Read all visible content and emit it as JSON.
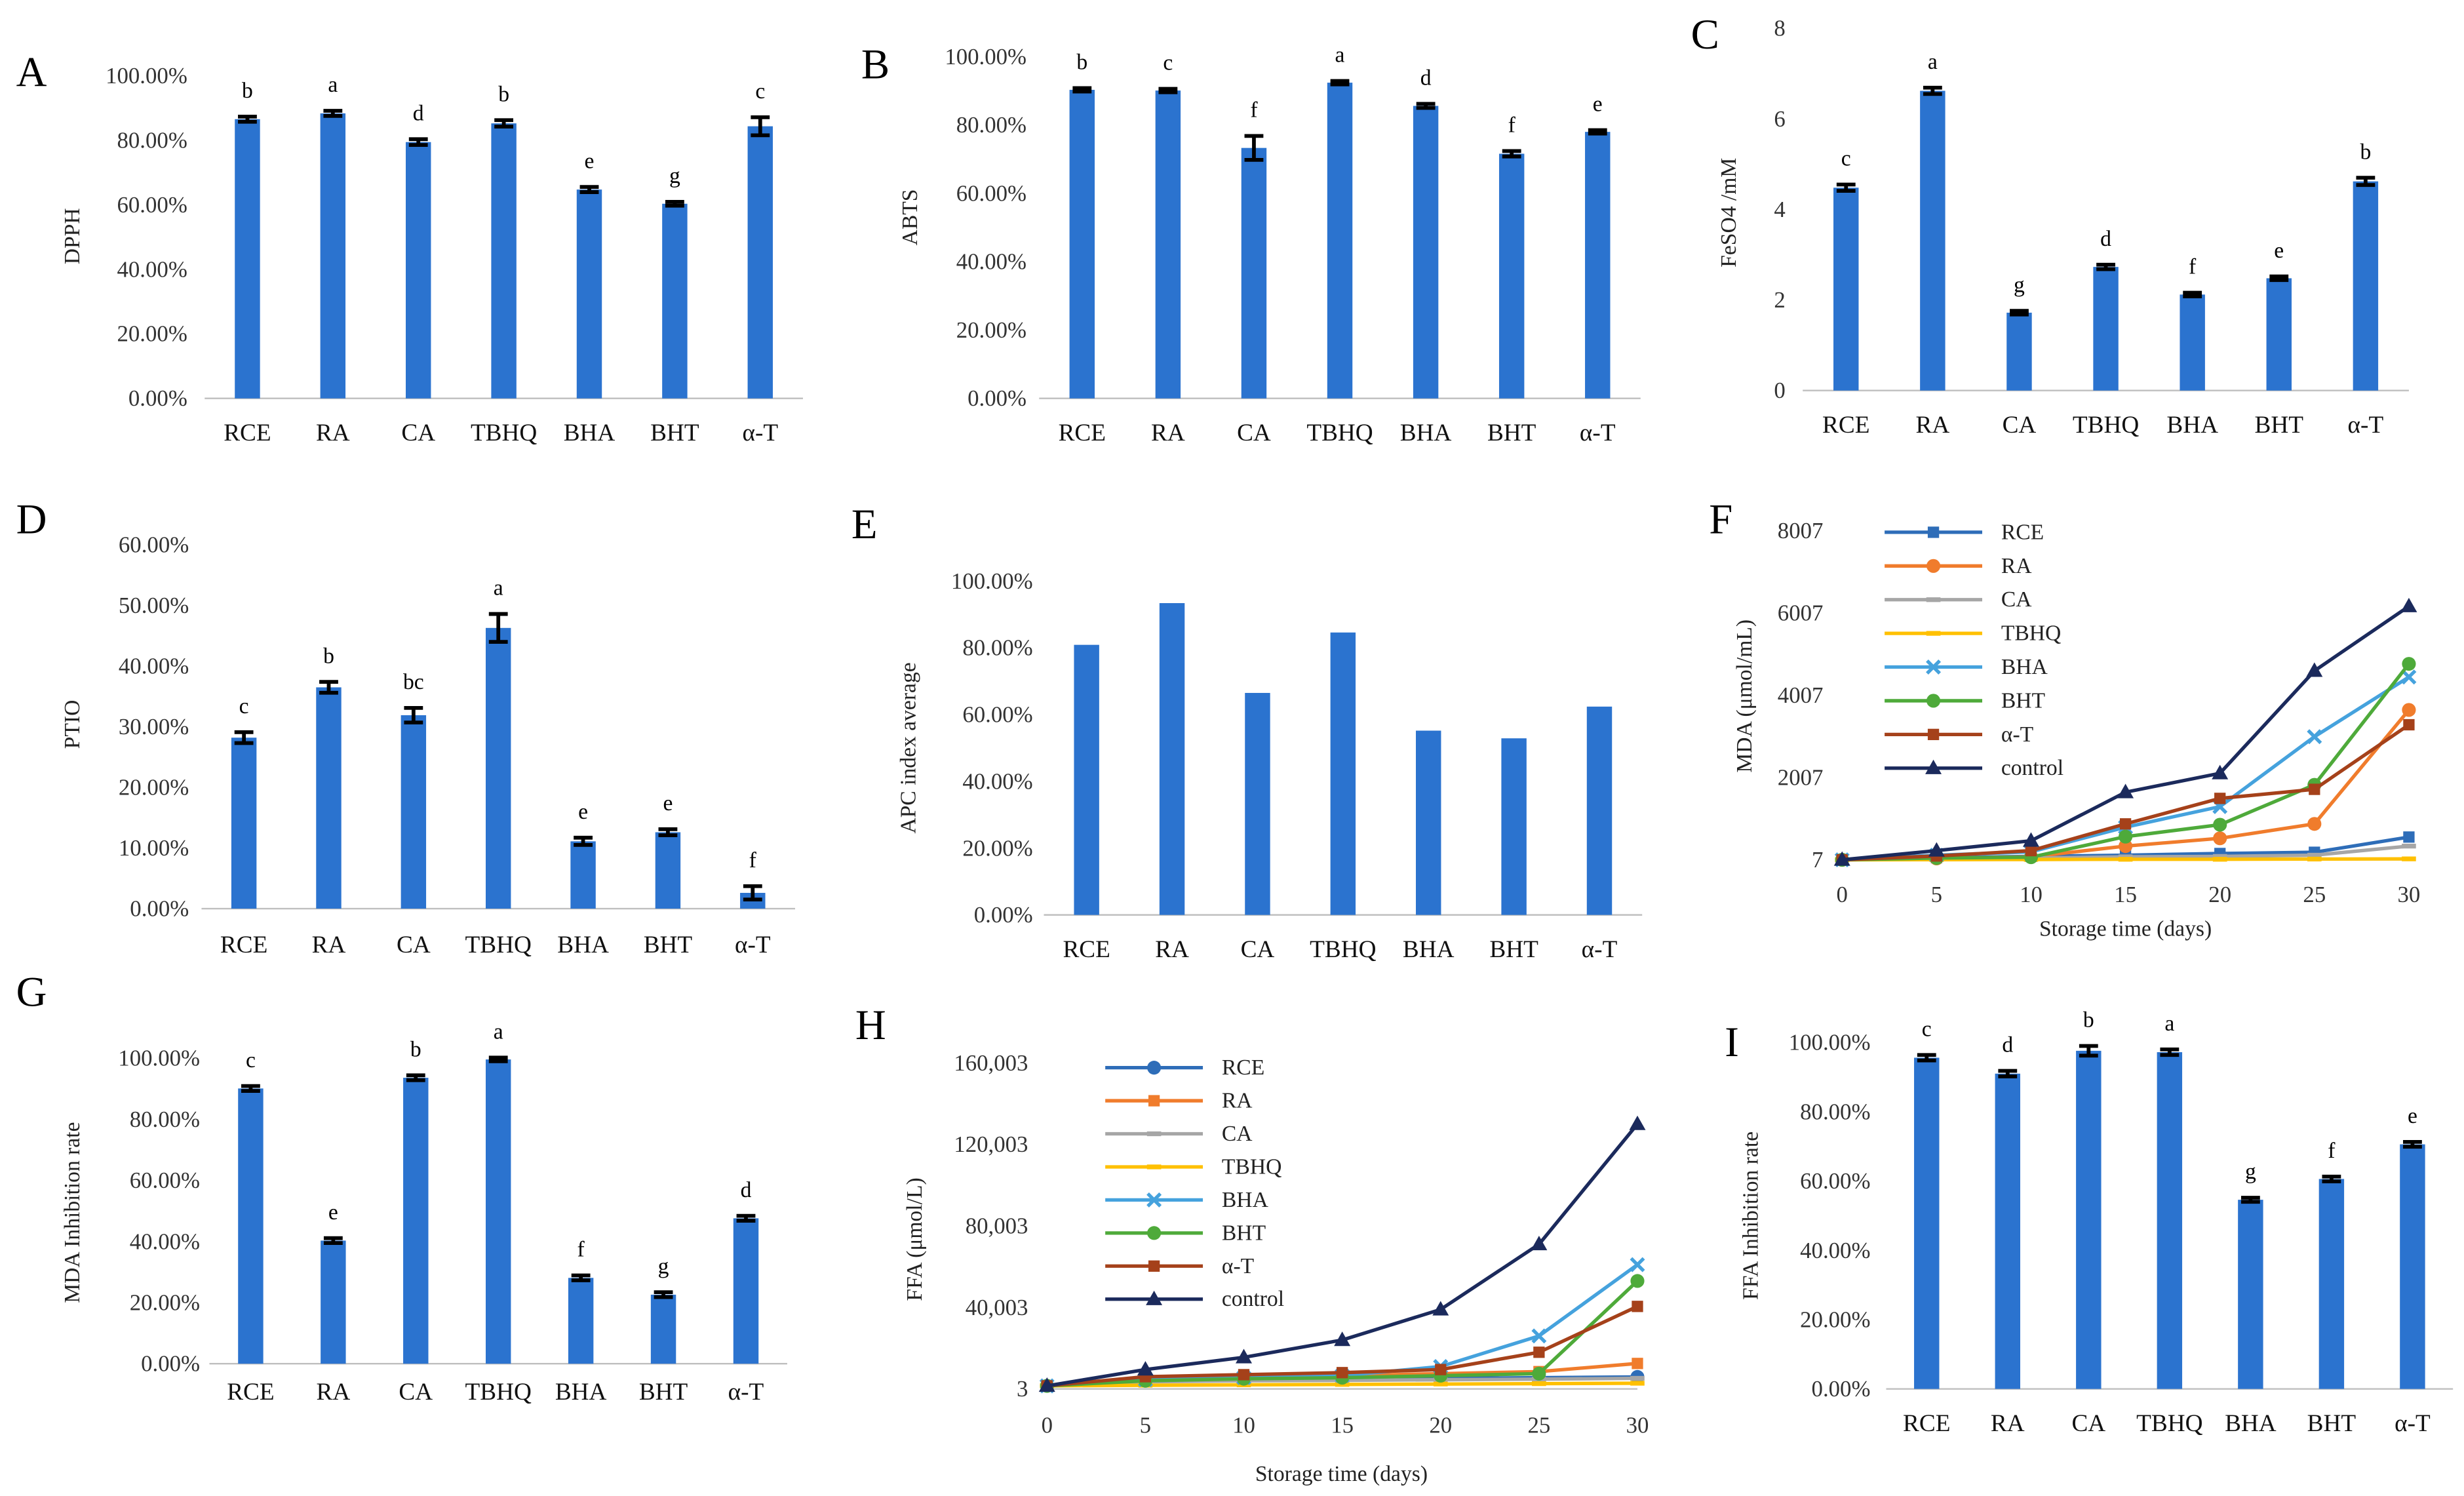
{
  "chart_data": [
    {
      "panel_label": "A",
      "type": "bar",
      "title": "",
      "xlabel": "",
      "ylabel": "DPPH",
      "categories": [
        "RCE",
        "RA",
        "CA",
        "TBHQ",
        "BHA",
        "BHT",
        "α-T"
      ],
      "values": [
        86.5,
        88.3,
        79.4,
        85.2,
        64.7,
        60.3,
        84.3
      ],
      "errors": [
        0.8,
        0.8,
        0.9,
        1.0,
        0.8,
        0.6,
        2.8
      ],
      "significance": [
        "b",
        "a",
        "d",
        "b",
        "e",
        "g",
        "c"
      ],
      "ylim": [
        0,
        100
      ],
      "yticks": [
        0,
        20,
        40,
        60,
        80,
        100
      ],
      "ytick_labels": [
        "0.00%",
        "20.00%",
        "40.00%",
        "60.00%",
        "80.00%",
        "100.00%"
      ],
      "grid": false,
      "color": "#2B73CF"
    },
    {
      "panel_label": "B",
      "type": "bar",
      "title": "",
      "xlabel": "",
      "ylabel": "ABTS",
      "categories": [
        "RCE",
        "RA",
        "CA",
        "TBHQ",
        "BHA",
        "BHT",
        "α-T"
      ],
      "values": [
        90.3,
        90.1,
        73.3,
        92.4,
        85.6,
        71.6,
        78.0
      ],
      "errors": [
        0.5,
        0.5,
        3.5,
        0.5,
        0.6,
        0.8,
        0.5
      ],
      "significance": [
        "b",
        "c",
        "f",
        "a",
        "d",
        "f",
        "e"
      ],
      "ylim": [
        0,
        100
      ],
      "yticks": [
        0,
        20,
        40,
        60,
        80,
        100
      ],
      "ytick_labels": [
        "0.00%",
        "20.00%",
        "40.00%",
        "60.00%",
        "80.00%",
        "100.00%"
      ],
      "grid": false,
      "color": "#2B73CF"
    },
    {
      "panel_label": "C",
      "type": "bar",
      "title": "",
      "xlabel": "",
      "ylabel": "FeSO4 /mM",
      "categories": [
        "RCE",
        "RA",
        "CA",
        "TBHQ",
        "BHA",
        "BHT",
        "α-T"
      ],
      "values": [
        4.48,
        6.62,
        1.72,
        2.73,
        2.12,
        2.48,
        4.62
      ],
      "errors": [
        0.07,
        0.07,
        0.04,
        0.05,
        0.04,
        0.04,
        0.08
      ],
      "significance": [
        "c",
        "a",
        "g",
        "d",
        "f",
        "e",
        "b"
      ],
      "ylim": [
        0,
        8
      ],
      "yticks": [
        0,
        2,
        4,
        6,
        8
      ],
      "ytick_labels": [
        "0",
        "2",
        "4",
        "6",
        "8"
      ],
      "grid": false,
      "color": "#2B73CF"
    },
    {
      "panel_label": "D",
      "type": "bar",
      "title": "",
      "xlabel": "",
      "ylabel": "PTIO",
      "categories": [
        "RCE",
        "RA",
        "CA",
        "TBHQ",
        "BHA",
        "BHT",
        "α-T"
      ],
      "values": [
        28.2,
        36.5,
        31.9,
        46.3,
        11.1,
        12.6,
        2.6
      ],
      "errors": [
        0.9,
        0.9,
        1.2,
        2.3,
        0.6,
        0.5,
        1.1
      ],
      "significance": [
        "c",
        "b",
        "bc",
        "a",
        "e",
        "e",
        "f"
      ],
      "ylim": [
        0,
        60
      ],
      "yticks": [
        0,
        10,
        20,
        30,
        40,
        50,
        60
      ],
      "ytick_labels": [
        "0.00%",
        "10.00%",
        "20.00%",
        "30.00%",
        "40.00%",
        "50.00%",
        "60.00%"
      ],
      "grid": false,
      "color": "#2B73CF"
    },
    {
      "panel_label": "E",
      "type": "bar",
      "title": "",
      "xlabel": "",
      "ylabel": "APC index average",
      "categories": [
        "RCE",
        "RA",
        "CA",
        "TBHQ",
        "BHA",
        "BHT",
        "α-T"
      ],
      "values": [
        80.9,
        93.4,
        66.5,
        84.6,
        55.2,
        52.9,
        62.4
      ],
      "ylim": [
        0,
        100
      ],
      "yticks": [
        0,
        20,
        40,
        60,
        80,
        100
      ],
      "ytick_labels": [
        "0.00%",
        "20.00%",
        "40.00%",
        "60.00%",
        "80.00%",
        "100.00%"
      ],
      "grid": false,
      "color": "#2B73CF"
    },
    {
      "panel_label": "F",
      "type": "line",
      "title": "",
      "xlabel": "Storage time (days)",
      "ylabel": "MDA (μmol/mL)",
      "x": [
        0,
        5,
        10,
        15,
        20,
        25,
        30
      ],
      "xlim": [
        0,
        30
      ],
      "xtick_labels": [
        "0",
        "5",
        "10",
        "15",
        "20",
        "25",
        "30"
      ],
      "ylim": [
        7,
        8007
      ],
      "yticks": [
        7,
        2007,
        4007,
        6007,
        8007
      ],
      "ytick_labels": [
        "7",
        "2007",
        "4007",
        "6007",
        "8007"
      ],
      "grid": false,
      "legend_position": "top-left",
      "series": [
        {
          "name": "RCE",
          "color": "#2E6DB8",
          "marker": "square",
          "values": [
            7,
            60,
            90,
            120,
            160,
            190,
            560
          ]
        },
        {
          "name": "RA",
          "color": "#F07C2C",
          "marker": "circle",
          "values": [
            7,
            40,
            80,
            340,
            530,
            880,
            3650
          ]
        },
        {
          "name": "CA",
          "color": "#A6A6A6",
          "marker": "dash",
          "values": [
            7,
            30,
            50,
            80,
            90,
            120,
            340
          ]
        },
        {
          "name": "TBHQ",
          "color": "#FFC000",
          "marker": "dash",
          "values": [
            7,
            10,
            15,
            20,
            20,
            25,
            30
          ]
        },
        {
          "name": "BHA",
          "color": "#45A2DD",
          "marker": "x",
          "values": [
            7,
            120,
            200,
            800,
            1300,
            3000,
            4450
          ]
        },
        {
          "name": "BHT",
          "color": "#4EAA3A",
          "marker": "circle",
          "values": [
            7,
            50,
            70,
            570,
            860,
            1830,
            4770
          ]
        },
        {
          "name": "α-T",
          "color": "#A5411A",
          "marker": "square",
          "values": [
            7,
            100,
            230,
            880,
            1500,
            1720,
            3290
          ]
        },
        {
          "name": "control",
          "color": "#1B2A5C",
          "marker": "triangle",
          "values": [
            7,
            230,
            470,
            1650,
            2110,
            4600,
            6170
          ]
        }
      ]
    },
    {
      "panel_label": "G",
      "type": "bar",
      "title": "",
      "xlabel": "",
      "ylabel": "MDA Inhibition rate",
      "categories": [
        "RCE",
        "RA",
        "CA",
        "TBHQ",
        "BHA",
        "BHT",
        "α-T"
      ],
      "values": [
        90.1,
        40.3,
        93.6,
        99.6,
        28.1,
        22.6,
        47.6
      ],
      "errors": [
        0.8,
        0.8,
        0.8,
        0.6,
        0.8,
        0.8,
        0.8
      ],
      "significance": [
        "c",
        "e",
        "b",
        "a",
        "f",
        "g",
        "d"
      ],
      "ylim": [
        0,
        100
      ],
      "yticks": [
        0,
        20,
        40,
        60,
        80,
        100
      ],
      "ytick_labels": [
        "0.00%",
        "20.00%",
        "40.00%",
        "60.00%",
        "80.00%",
        "100.00%"
      ],
      "grid": false,
      "color": "#2B73CF"
    },
    {
      "panel_label": "H",
      "type": "line",
      "title": "",
      "xlabel": "Storage time (days)",
      "ylabel": "FFA (μmol/L)",
      "x": [
        0,
        5,
        10,
        15,
        20,
        25,
        30
      ],
      "xlim": [
        0,
        30
      ],
      "xtick_labels": [
        "0",
        "5",
        "10",
        "15",
        "20",
        "25",
        "30"
      ],
      "ylim": [
        3,
        160003
      ],
      "yticks": [
        3,
        40003,
        80003,
        120003,
        160003
      ],
      "ytick_labels": [
        "3",
        "40,003",
        "80,003",
        "120,003",
        "160,003"
      ],
      "grid": false,
      "legend_position": "top-left",
      "series": [
        {
          "name": "RCE",
          "color": "#2E6DB8",
          "marker": "circle",
          "values": [
            1500,
            4000,
            4800,
            5000,
            5200,
            5500,
            5900
          ]
        },
        {
          "name": "RA",
          "color": "#F07C2C",
          "marker": "square",
          "values": [
            1500,
            5000,
            6000,
            6500,
            7500,
            8500,
            12500
          ]
        },
        {
          "name": "CA",
          "color": "#A6A6A6",
          "marker": "dash",
          "values": [
            1500,
            3500,
            4000,
            4200,
            4500,
            4800,
            5200
          ]
        },
        {
          "name": "TBHQ",
          "color": "#FFC000",
          "marker": "dash",
          "values": [
            1500,
            1800,
            2000,
            2200,
            2400,
            2600,
            2800
          ]
        },
        {
          "name": "BHA",
          "color": "#45A2DD",
          "marker": "x",
          "values": [
            1500,
            4500,
            5500,
            6500,
            11000,
            26000,
            61000
          ]
        },
        {
          "name": "BHT",
          "color": "#4EAA3A",
          "marker": "circle",
          "values": [
            1500,
            4000,
            5000,
            5500,
            6500,
            7500,
            53000
          ]
        },
        {
          "name": "α-T",
          "color": "#A5411A",
          "marker": "square",
          "values": [
            1500,
            6000,
            7000,
            8000,
            9500,
            18000,
            40500
          ]
        },
        {
          "name": "control",
          "color": "#1B2A5C",
          "marker": "triangle",
          "values": [
            1500,
            9500,
            15500,
            24000,
            39000,
            71000,
            130000
          ]
        }
      ]
    },
    {
      "panel_label": "I",
      "type": "bar",
      "title": "",
      "xlabel": "",
      "ylabel": "FFA Inhibition rate",
      "categories": [
        "RCE",
        "RA",
        "CA",
        "TBHQ",
        "BHA",
        "BHT",
        "α-T"
      ],
      "values": [
        95.6,
        91.0,
        97.6,
        97.2,
        54.6,
        60.6,
        70.6
      ],
      "errors": [
        0.8,
        0.8,
        1.4,
        0.8,
        0.6,
        0.7,
        0.7
      ],
      "significance": [
        "c",
        "d",
        "b",
        "a",
        "g",
        "f",
        "e"
      ],
      "ylim": [
        0,
        100
      ],
      "yticks": [
        0,
        20,
        40,
        60,
        80,
        100
      ],
      "ytick_labels": [
        "0.00%",
        "20.00%",
        "40.00%",
        "60.00%",
        "80.00%",
        "100.00%"
      ],
      "grid": false,
      "color": "#2B73CF"
    }
  ]
}
